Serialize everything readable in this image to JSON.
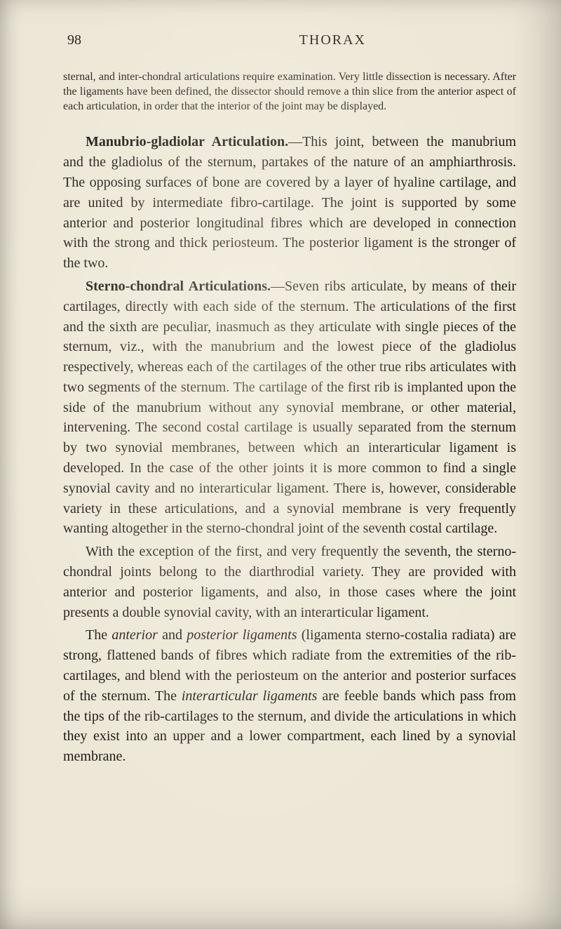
{
  "colors": {
    "paper": "#ede7d7",
    "ink": "#1d1914",
    "ink_light": "#2b261f"
  },
  "typography": {
    "body_fontsize_pt": 15,
    "small_fontsize_pt": 12,
    "header_fontsize_pt": 15,
    "line_height": 1.44,
    "font_family": "Georgia, Times New Roman, serif"
  },
  "header": {
    "page_number": "98",
    "running_title": "THORAX"
  },
  "small_intro": "sternal, and inter-chondral articulations require examination. Very little dissection is necessary. After the ligaments have been defined, the dissector should remove a thin slice from the anterior aspect of each articulation, in order that the interior of the joint may be displayed.",
  "para1": {
    "lead": "Manubrio-gladiolar Articulation.",
    "rest": "—This joint, between the manubrium and the gladiolus of the sternum, partakes of the nature of an amphiarthrosis. The opposing surfaces of bone are covered by a layer of hyaline cartilage, and are united by intermediate fibro-cartilage. The joint is supported by some anterior and posterior longitudinal fibres which are developed in connection with the strong and thick periosteum. The posterior ligament is the stronger of the two."
  },
  "para2": {
    "lead": "Sterno-chondral Articulations.",
    "rest": "—Seven ribs articulate, by means of their cartilages, directly with each side of the sternum. The articulations of the first and the sixth are peculiar, inasmuch as they articulate with single pieces of the sternum, viz., with the manubrium and the lowest piece of the gladiolus respectively, whereas each of the cartilages of the other true ribs articulates with two segments of the sternum. The cartilage of the first rib is implanted upon the side of the manubrium without any synovial membrane, or other material, intervening. The second costal cartilage is usually separated from the sternum by two synovial membranes, between which an interarticular ligament is developed. In the case of the other joints it is more common to find a single synovial cavity and no interarticular ligament. There is, however, considerable variety in these articulations, and a synovial membrane is very frequently wanting altogether in the sterno-chondral joint of the seventh costal cartilage."
  },
  "para3": "With the exception of the first, and very frequently the seventh, the sterno-chondral joints belong to the diarthrodial variety. They are provided with anterior and posterior ligaments, and also, in those cases where the joint presents a double synovial cavity, with an interarticular ligament.",
  "para4": {
    "pre": "The ",
    "i1": "anterior",
    "mid1": " and ",
    "i2": "posterior ligaments",
    "mid2": " (ligamenta sterno-costalia radiata) are strong, flattened bands of fibres which radiate from the extremities of the rib-cartilages, and blend with the periosteum on the anterior and posterior surfaces of the sternum. The ",
    "i3": "interarticular ligaments",
    "post": " are feeble bands which pass from the tips of the rib-cartilages to the sternum, and divide the articulations in which they exist into an upper and a lower compartment, each lined by a synovial membrane."
  }
}
